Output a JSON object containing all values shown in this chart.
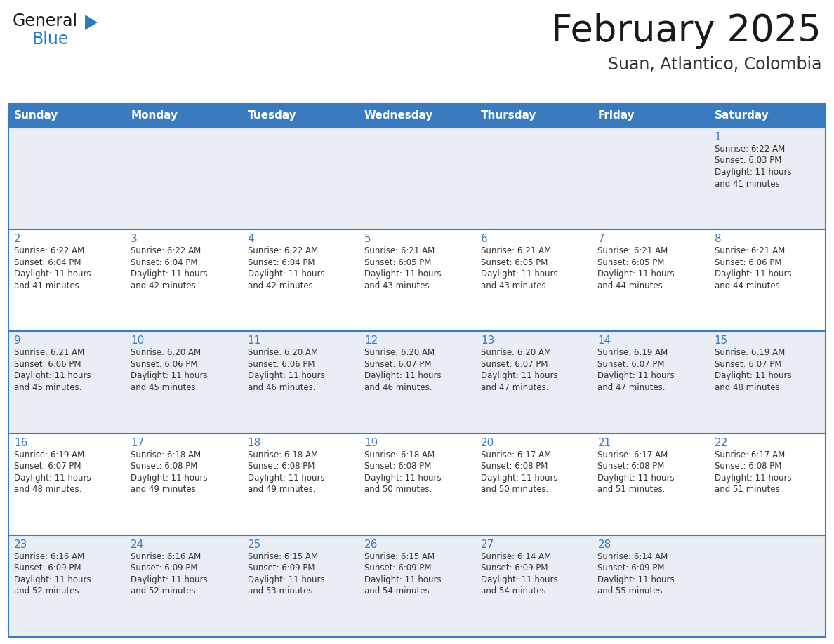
{
  "title": "February 2025",
  "subtitle": "Suan, Atlantico, Colombia",
  "header_bg": "#3a7abf",
  "header_text_color": "#ffffff",
  "cell_bg_light": "#e8eef4",
  "cell_bg_white": "#ffffff",
  "border_color": "#3a7abf",
  "day_names": [
    "Sunday",
    "Monday",
    "Tuesday",
    "Wednesday",
    "Thursday",
    "Friday",
    "Saturday"
  ],
  "title_color": "#1a1a1a",
  "subtitle_color": "#333333",
  "day_number_color": "#3a7abf",
  "cell_text_color": "#333333",
  "logo_general_color": "#1a1a1a",
  "logo_blue_color": "#2a7abf",
  "weeks": [
    [
      {
        "day": 0,
        "info": ""
      },
      {
        "day": 0,
        "info": ""
      },
      {
        "day": 0,
        "info": ""
      },
      {
        "day": 0,
        "info": ""
      },
      {
        "day": 0,
        "info": ""
      },
      {
        "day": 0,
        "info": ""
      },
      {
        "day": 1,
        "info": "Sunrise: 6:22 AM\nSunset: 6:03 PM\nDaylight: 11 hours\nand 41 minutes."
      }
    ],
    [
      {
        "day": 2,
        "info": "Sunrise: 6:22 AM\nSunset: 6:04 PM\nDaylight: 11 hours\nand 41 minutes."
      },
      {
        "day": 3,
        "info": "Sunrise: 6:22 AM\nSunset: 6:04 PM\nDaylight: 11 hours\nand 42 minutes."
      },
      {
        "day": 4,
        "info": "Sunrise: 6:22 AM\nSunset: 6:04 PM\nDaylight: 11 hours\nand 42 minutes."
      },
      {
        "day": 5,
        "info": "Sunrise: 6:21 AM\nSunset: 6:05 PM\nDaylight: 11 hours\nand 43 minutes."
      },
      {
        "day": 6,
        "info": "Sunrise: 6:21 AM\nSunset: 6:05 PM\nDaylight: 11 hours\nand 43 minutes."
      },
      {
        "day": 7,
        "info": "Sunrise: 6:21 AM\nSunset: 6:05 PM\nDaylight: 11 hours\nand 44 minutes."
      },
      {
        "day": 8,
        "info": "Sunrise: 6:21 AM\nSunset: 6:06 PM\nDaylight: 11 hours\nand 44 minutes."
      }
    ],
    [
      {
        "day": 9,
        "info": "Sunrise: 6:21 AM\nSunset: 6:06 PM\nDaylight: 11 hours\nand 45 minutes."
      },
      {
        "day": 10,
        "info": "Sunrise: 6:20 AM\nSunset: 6:06 PM\nDaylight: 11 hours\nand 45 minutes."
      },
      {
        "day": 11,
        "info": "Sunrise: 6:20 AM\nSunset: 6:06 PM\nDaylight: 11 hours\nand 46 minutes."
      },
      {
        "day": 12,
        "info": "Sunrise: 6:20 AM\nSunset: 6:07 PM\nDaylight: 11 hours\nand 46 minutes."
      },
      {
        "day": 13,
        "info": "Sunrise: 6:20 AM\nSunset: 6:07 PM\nDaylight: 11 hours\nand 47 minutes."
      },
      {
        "day": 14,
        "info": "Sunrise: 6:19 AM\nSunset: 6:07 PM\nDaylight: 11 hours\nand 47 minutes."
      },
      {
        "day": 15,
        "info": "Sunrise: 6:19 AM\nSunset: 6:07 PM\nDaylight: 11 hours\nand 48 minutes."
      }
    ],
    [
      {
        "day": 16,
        "info": "Sunrise: 6:19 AM\nSunset: 6:07 PM\nDaylight: 11 hours\nand 48 minutes."
      },
      {
        "day": 17,
        "info": "Sunrise: 6:18 AM\nSunset: 6:08 PM\nDaylight: 11 hours\nand 49 minutes."
      },
      {
        "day": 18,
        "info": "Sunrise: 6:18 AM\nSunset: 6:08 PM\nDaylight: 11 hours\nand 49 minutes."
      },
      {
        "day": 19,
        "info": "Sunrise: 6:18 AM\nSunset: 6:08 PM\nDaylight: 11 hours\nand 50 minutes."
      },
      {
        "day": 20,
        "info": "Sunrise: 6:17 AM\nSunset: 6:08 PM\nDaylight: 11 hours\nand 50 minutes."
      },
      {
        "day": 21,
        "info": "Sunrise: 6:17 AM\nSunset: 6:08 PM\nDaylight: 11 hours\nand 51 minutes."
      },
      {
        "day": 22,
        "info": "Sunrise: 6:17 AM\nSunset: 6:08 PM\nDaylight: 11 hours\nand 51 minutes."
      }
    ],
    [
      {
        "day": 23,
        "info": "Sunrise: 6:16 AM\nSunset: 6:09 PM\nDaylight: 11 hours\nand 52 minutes."
      },
      {
        "day": 24,
        "info": "Sunrise: 6:16 AM\nSunset: 6:09 PM\nDaylight: 11 hours\nand 52 minutes."
      },
      {
        "day": 25,
        "info": "Sunrise: 6:15 AM\nSunset: 6:09 PM\nDaylight: 11 hours\nand 53 minutes."
      },
      {
        "day": 26,
        "info": "Sunrise: 6:15 AM\nSunset: 6:09 PM\nDaylight: 11 hours\nand 54 minutes."
      },
      {
        "day": 27,
        "info": "Sunrise: 6:14 AM\nSunset: 6:09 PM\nDaylight: 11 hours\nand 54 minutes."
      },
      {
        "day": 28,
        "info": "Sunrise: 6:14 AM\nSunset: 6:09 PM\nDaylight: 11 hours\nand 55 minutes."
      },
      {
        "day": 0,
        "info": ""
      }
    ]
  ]
}
